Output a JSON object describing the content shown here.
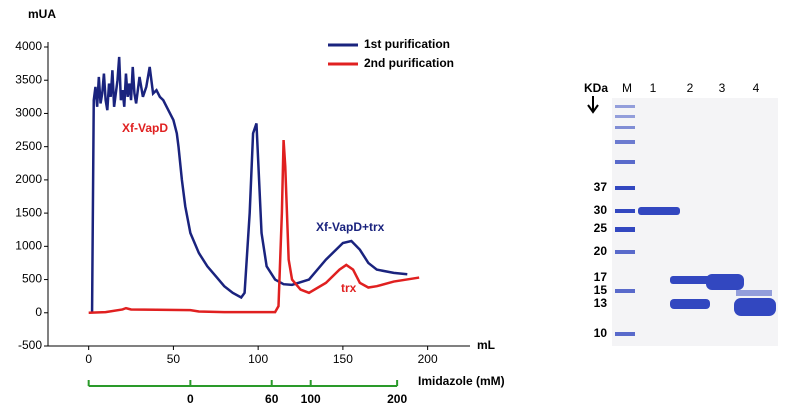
{
  "chart_data": {
    "type": "line",
    "y_axis_label": "mUA",
    "x_axis_label": "mL",
    "xlim": [
      -24,
      225
    ],
    "xticks": [
      0,
      50,
      100,
      150,
      200
    ],
    "ylim": [
      -500,
      4000
    ],
    "yticks": [
      -500,
      0,
      500,
      1000,
      1500,
      2000,
      2500,
      3000,
      3500,
      4000
    ],
    "legend": "top-right",
    "series": [
      {
        "name": "1st purification",
        "color": "#1a237e",
        "x": [
          2,
          3,
          4,
          5,
          6,
          7,
          8,
          9,
          10,
          11,
          12,
          13,
          14,
          15,
          16,
          17,
          18,
          19,
          20,
          21,
          22,
          23,
          24,
          25,
          26,
          27,
          28,
          30,
          32,
          34,
          36,
          38,
          40,
          42,
          44,
          46,
          48,
          50,
          52,
          53,
          55,
          57,
          60,
          65,
          70,
          75,
          80,
          85,
          90,
          92,
          95,
          97,
          99,
          100,
          102,
          105,
          110,
          115,
          120,
          130,
          140,
          150,
          155,
          160,
          165,
          170,
          180,
          188
        ],
        "values": [
          0,
          3200,
          3400,
          3100,
          3550,
          3150,
          3300,
          3600,
          3200,
          3050,
          3450,
          3250,
          3650,
          3100,
          3300,
          3500,
          3850,
          3200,
          3350,
          3100,
          3600,
          3250,
          3450,
          3200,
          3700,
          3300,
          3150,
          3550,
          3250,
          3400,
          3700,
          3300,
          3350,
          3250,
          3200,
          3100,
          3000,
          2900,
          2700,
          2500,
          2000,
          1600,
          1200,
          900,
          700,
          550,
          400,
          300,
          230,
          300,
          1500,
          2700,
          2850,
          2300,
          1200,
          700,
          500,
          430,
          420,
          500,
          800,
          1050,
          1080,
          950,
          750,
          650,
          600,
          580
        ]
      },
      {
        "name": "2nd purification",
        "color": "#e02020",
        "x": [
          0,
          10,
          20,
          22,
          25,
          40,
          60,
          65,
          80,
          110,
          112,
          114,
          115,
          116,
          118,
          120,
          125,
          130,
          140,
          148,
          152,
          156,
          160,
          165,
          170,
          180,
          195
        ],
        "values": [
          0,
          10,
          50,
          70,
          50,
          45,
          40,
          20,
          10,
          10,
          100,
          1500,
          2600,
          2200,
          800,
          500,
          350,
          300,
          450,
          650,
          720,
          650,
          450,
          380,
          400,
          470,
          530
        ]
      }
    ],
    "annotations": [
      {
        "text": "Xf-VapD",
        "color": "#e02020"
      },
      {
        "text": "Xf-VapD+trx",
        "color": "#1a237e"
      },
      {
        "text": "trx",
        "color": "#e02020"
      }
    ],
    "imidazole_axis": {
      "title": "Imidazole (mM)",
      "color": "#2a9a2a",
      "x": [
        0,
        60,
        108,
        131,
        182
      ],
      "values": [
        null,
        0,
        60,
        100,
        200
      ]
    }
  },
  "gel": {
    "unit": "KDa",
    "lanes": [
      "M",
      "1",
      "2",
      "3",
      "4"
    ],
    "markers": [
      "37",
      "30",
      "25",
      "20",
      "17",
      "15",
      "13",
      "10"
    ]
  }
}
